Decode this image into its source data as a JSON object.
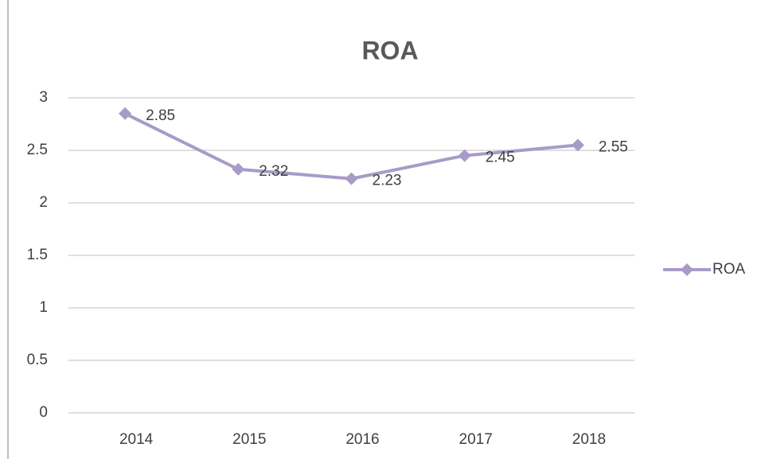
{
  "chart_data": {
    "type": "line",
    "title": "ROA",
    "categories": [
      "2014",
      "2015",
      "2016",
      "2017",
      "2018"
    ],
    "series": [
      {
        "name": "ROA",
        "color": "#a89bc8",
        "values": [
          2.85,
          2.32,
          2.23,
          2.45,
          2.55
        ]
      }
    ],
    "ylim": [
      0,
      3
    ],
    "yticks": [
      0,
      0.5,
      1,
      1.5,
      2,
      2.5,
      3
    ],
    "grid": true,
    "legend": "right"
  }
}
